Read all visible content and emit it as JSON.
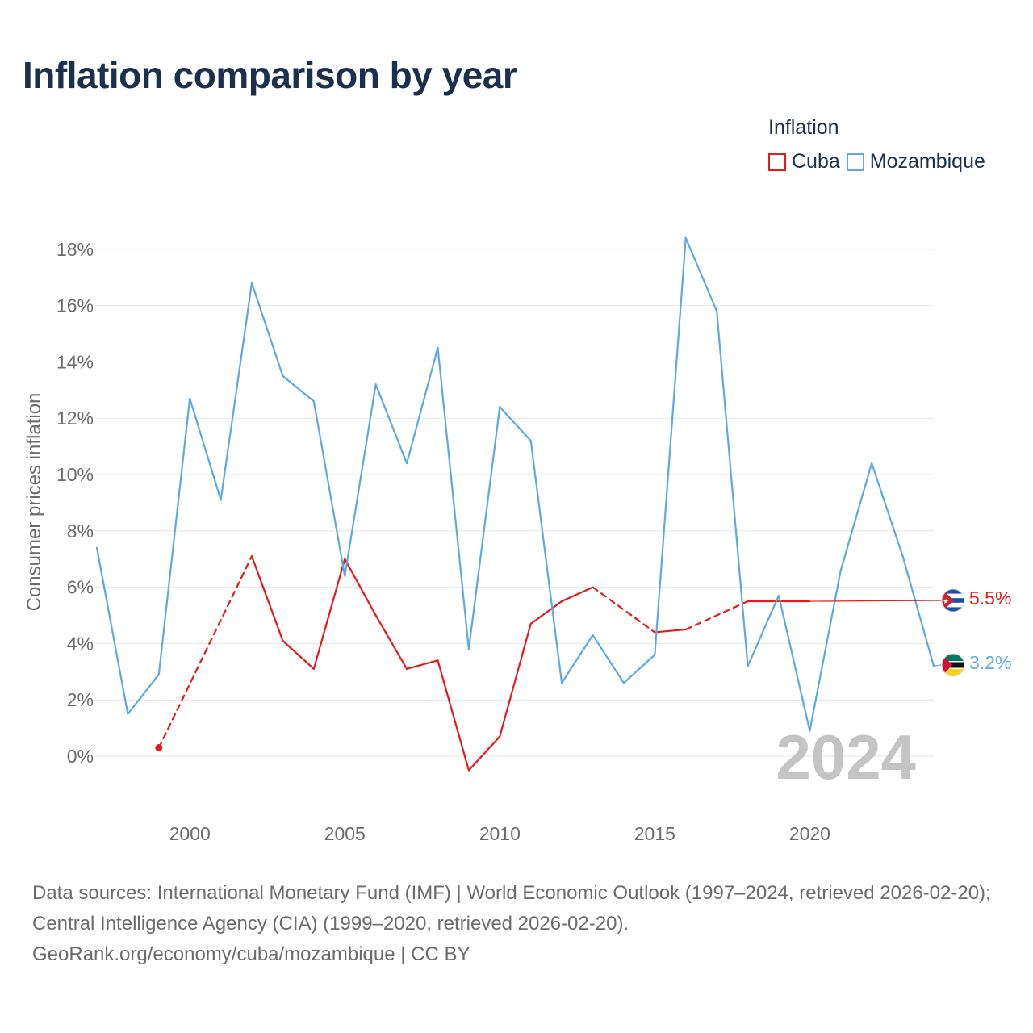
{
  "title": "Inflation comparison by year",
  "legend": {
    "title": "Inflation",
    "items": [
      {
        "label": "Cuba",
        "color": "#e8191a"
      },
      {
        "label": "Mozambique",
        "color": "#5ca9e3"
      }
    ]
  },
  "current_year": "2024",
  "end_labels": {
    "cuba": "5.5%",
    "mozambique": "3.2%"
  },
  "footer": {
    "line1": "Data sources: International Monetary Fund (IMF) | World Economic Outlook (1997–2024, retrieved 2026-02-20); Central Intelligence Agency (CIA) (1999–2020, retrieved 2026-02-20).",
    "line2": "GeoRank.org/economy/cuba/mozambique | CC BY"
  },
  "chart_data": {
    "type": "line",
    "title": "Inflation comparison by year",
    "xlabel": "",
    "ylabel": "Consumer prices inflation",
    "xlim": [
      1997,
      2024
    ],
    "ylim": [
      -2,
      18.5
    ],
    "y_ticks": [
      0,
      2,
      4,
      6,
      8,
      10,
      12,
      14,
      16,
      18
    ],
    "y_tick_labels": [
      "0%",
      "2%",
      "4%",
      "6%",
      "8%",
      "10%",
      "12%",
      "14%",
      "16%",
      "18%"
    ],
    "x_ticks": [
      2000,
      2005,
      2010,
      2015,
      2020
    ],
    "x_tick_labels": [
      "2000",
      "2005",
      "2010",
      "2015",
      "2020"
    ],
    "grid": true,
    "legend_position": "top-right",
    "series": [
      {
        "name": "Cuba",
        "color": "#e8191a",
        "x": [
          1999,
          2002,
          2003,
          2004,
          2005,
          2006,
          2007,
          2008,
          2009,
          2010,
          2011,
          2012,
          2013,
          2015,
          2016,
          2018,
          2019,
          2020
        ],
        "values": [
          0.3,
          7.1,
          4.1,
          3.1,
          7.0,
          5.0,
          3.1,
          3.4,
          -0.5,
          0.7,
          4.7,
          5.5,
          6.0,
          4.4,
          4.5,
          5.5,
          5.5,
          5.5
        ],
        "dashed_segments": [
          [
            1999,
            2002
          ],
          [
            2013,
            2015
          ],
          [
            2016,
            2018
          ]
        ]
      },
      {
        "name": "Mozambique",
        "color": "#5ca9e3",
        "x": [
          1997,
          1998,
          1999,
          2000,
          2001,
          2002,
          2003,
          2004,
          2005,
          2006,
          2007,
          2008,
          2009,
          2010,
          2011,
          2012,
          2013,
          2014,
          2015,
          2016,
          2017,
          2018,
          2019,
          2020,
          2021,
          2022,
          2023,
          2024
        ],
        "values": [
          7.4,
          1.5,
          2.9,
          12.7,
          9.1,
          16.8,
          13.5,
          12.6,
          6.4,
          13.2,
          10.4,
          14.5,
          3.8,
          12.4,
          11.2,
          2.6,
          4.3,
          2.6,
          3.6,
          18.4,
          15.8,
          3.2,
          5.7,
          0.9,
          6.6,
          10.4,
          7.1,
          3.2
        ]
      }
    ]
  }
}
